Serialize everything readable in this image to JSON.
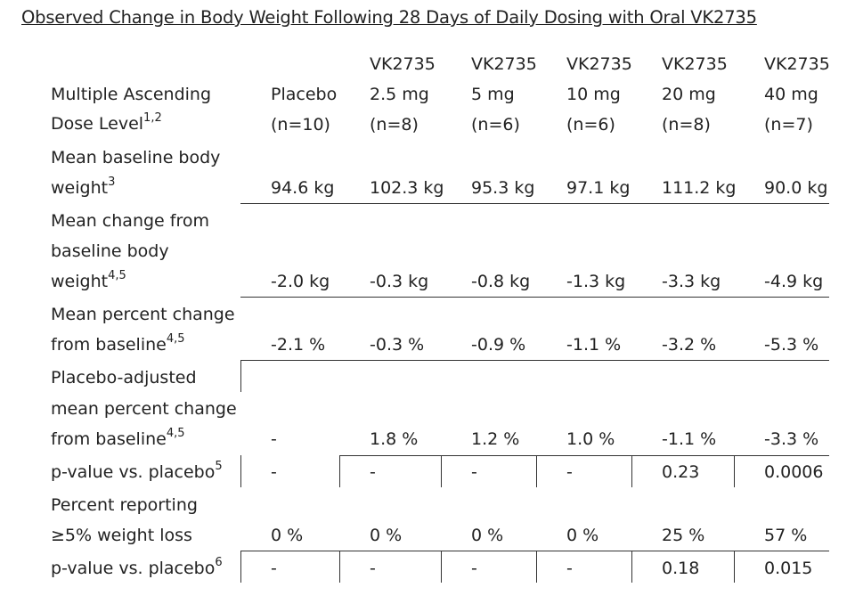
{
  "title": "Observed Change in Body Weight Following 28 Days of Daily Dosing with Oral VK2735",
  "header": {
    "row_label": [
      "Multiple Ascending",
      "Dose Level"
    ],
    "row_label_sup": "1,2",
    "columns": [
      {
        "drug": "",
        "dose": "Placebo",
        "n": "(n=10)"
      },
      {
        "drug": "VK2735",
        "dose": "2.5 mg",
        "n": "(n=8)"
      },
      {
        "drug": "VK2735",
        "dose": "5 mg",
        "n": "(n=6)"
      },
      {
        "drug": "VK2735",
        "dose": "10 mg",
        "n": "(n=6)"
      },
      {
        "drug": "VK2735",
        "dose": "20 mg",
        "n": "(n=8)"
      },
      {
        "drug": "VK2735",
        "dose": "40 mg",
        "n": "(n=7)"
      }
    ]
  },
  "rows": [
    {
      "label": [
        "Mean baseline body",
        "weight"
      ],
      "sup": "3",
      "values": [
        "94.6 kg",
        "102.3 kg",
        "95.3 kg",
        "97.1 kg",
        "111.2 kg",
        "90.0 kg"
      ]
    },
    {
      "label": [
        "Mean change from",
        "baseline body",
        "weight"
      ],
      "sup": "4,5",
      "values": [
        "-2.0 kg",
        "-0.3 kg",
        "-0.8 kg",
        "-1.3 kg",
        "-3.3 kg",
        "-4.9 kg"
      ]
    },
    {
      "label": [
        "Mean percent change",
        "from baseline"
      ],
      "sup": "4,5",
      "values": [
        "-2.1 %",
        "-0.3 %",
        "-0.9 %",
        "-1.1 %",
        "-3.2 %",
        "-5.3 %"
      ]
    },
    {
      "label": [
        "Placebo-adjusted",
        "mean percent change",
        "from baseline"
      ],
      "sup": "4,5",
      "values": [
        "-",
        "1.8 %",
        "1.2 %",
        "1.0 %",
        "-1.1 %",
        "-3.3 %"
      ]
    },
    {
      "label": [
        "p-value vs. placebo"
      ],
      "sup": "5",
      "values": [
        "-",
        "-",
        "-",
        "-",
        "0.23",
        "0.0006"
      ]
    },
    {
      "label": [
        "Percent reporting",
        "≥5% weight loss"
      ],
      "sup": "",
      "values": [
        "0 %",
        "0 %",
        "0 %",
        "0 %",
        "25 %",
        "57 %"
      ]
    },
    {
      "label": [
        "p-value vs. placebo"
      ],
      "sup": "6",
      "values": [
        "-",
        "-",
        "-",
        "-",
        "0.18",
        "0.015"
      ]
    }
  ]
}
